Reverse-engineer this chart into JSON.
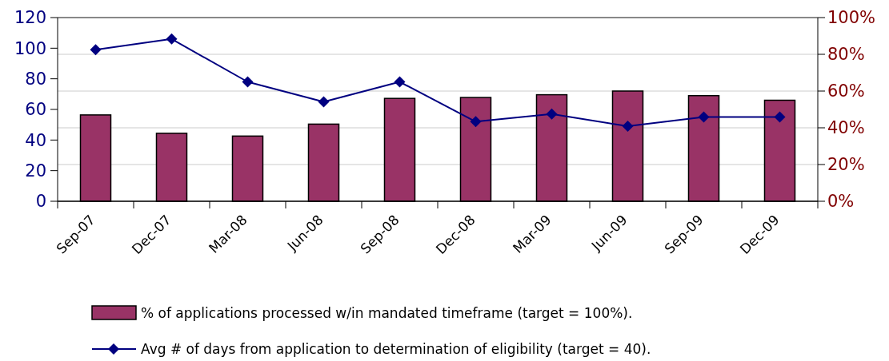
{
  "chart_data": {
    "type": "bar",
    "categories": [
      "Sep-07",
      "Dec-07",
      "Mar-08",
      "Jun-08",
      "Sep-08",
      "Dec-08",
      "Mar-09",
      "Jun-09",
      "Sep-09",
      "Dec-09"
    ],
    "series": [
      {
        "name": "% of applications processed w/in mandated timeframe (target = 100%).",
        "axis": "y2",
        "color": "#993366",
        "values": [
          47,
          37,
          35.5,
          42,
          56,
          56.5,
          58,
          60,
          57.5,
          55
        ]
      },
      {
        "name": "Avg # of days from application to determination of eligibility (target = 40).",
        "type": "line",
        "axis": "y",
        "color": "#000080",
        "marker": "diamond",
        "values": [
          99,
          106,
          78,
          65,
          78,
          52,
          57,
          49,
          55,
          55
        ]
      }
    ],
    "ylim": [
      0,
      120
    ],
    "yticks": [
      0,
      20,
      40,
      60,
      80,
      100,
      120
    ],
    "y2lim": [
      0,
      100
    ],
    "y2ticks": [
      {
        "value": 0,
        "label": "0%"
      },
      {
        "value": 20,
        "label": "20%"
      },
      {
        "value": 40,
        "label": "40%"
      },
      {
        "value": 60,
        "label": "60%"
      },
      {
        "value": 80,
        "label": "80%"
      },
      {
        "value": 100,
        "label": "100%"
      }
    ],
    "grid": true,
    "legend": "bottom"
  }
}
